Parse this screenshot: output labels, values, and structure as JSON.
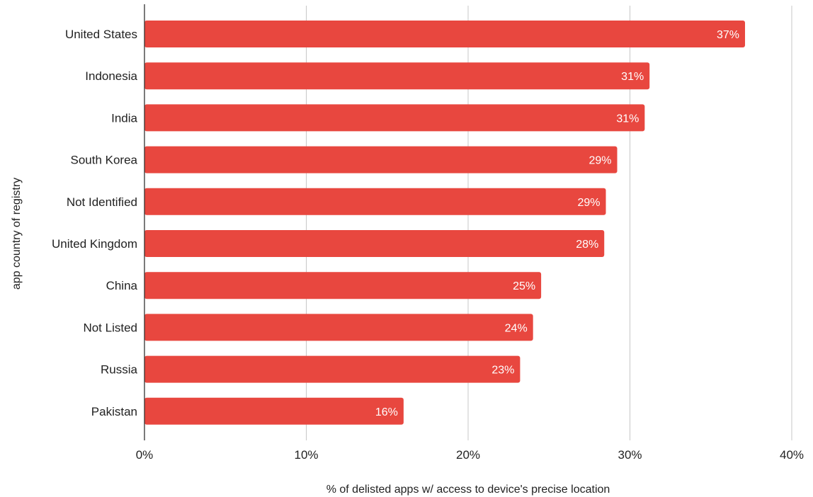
{
  "chart_data": {
    "type": "bar",
    "orientation": "horizontal",
    "categories": [
      "United States",
      "Indonesia",
      "India",
      "South Korea",
      "Not Identified",
      "United Kingdom",
      "China",
      "Not Listed",
      "Russia",
      "Pakistan"
    ],
    "values": [
      37.2,
      31.3,
      31.0,
      29.3,
      28.6,
      28.5,
      24.6,
      24.1,
      23.3,
      16.1
    ],
    "data_labels": [
      "37%",
      "31%",
      "31%",
      "29%",
      "29%",
      "28%",
      "25%",
      "24%",
      "23%",
      "16%"
    ],
    "xlabel": "% of delisted apps w/ access to device's precise location",
    "ylabel": "app country of registry",
    "xlim": [
      0,
      40
    ],
    "xticks": [
      0,
      10,
      20,
      30,
      40
    ],
    "xtick_labels": [
      "0%",
      "10%",
      "20%",
      "30%",
      "40%"
    ],
    "grid": "vertical",
    "bar_color": "#e8473f",
    "grid_color": "#c7c7c7",
    "axis_color": "#333333"
  }
}
